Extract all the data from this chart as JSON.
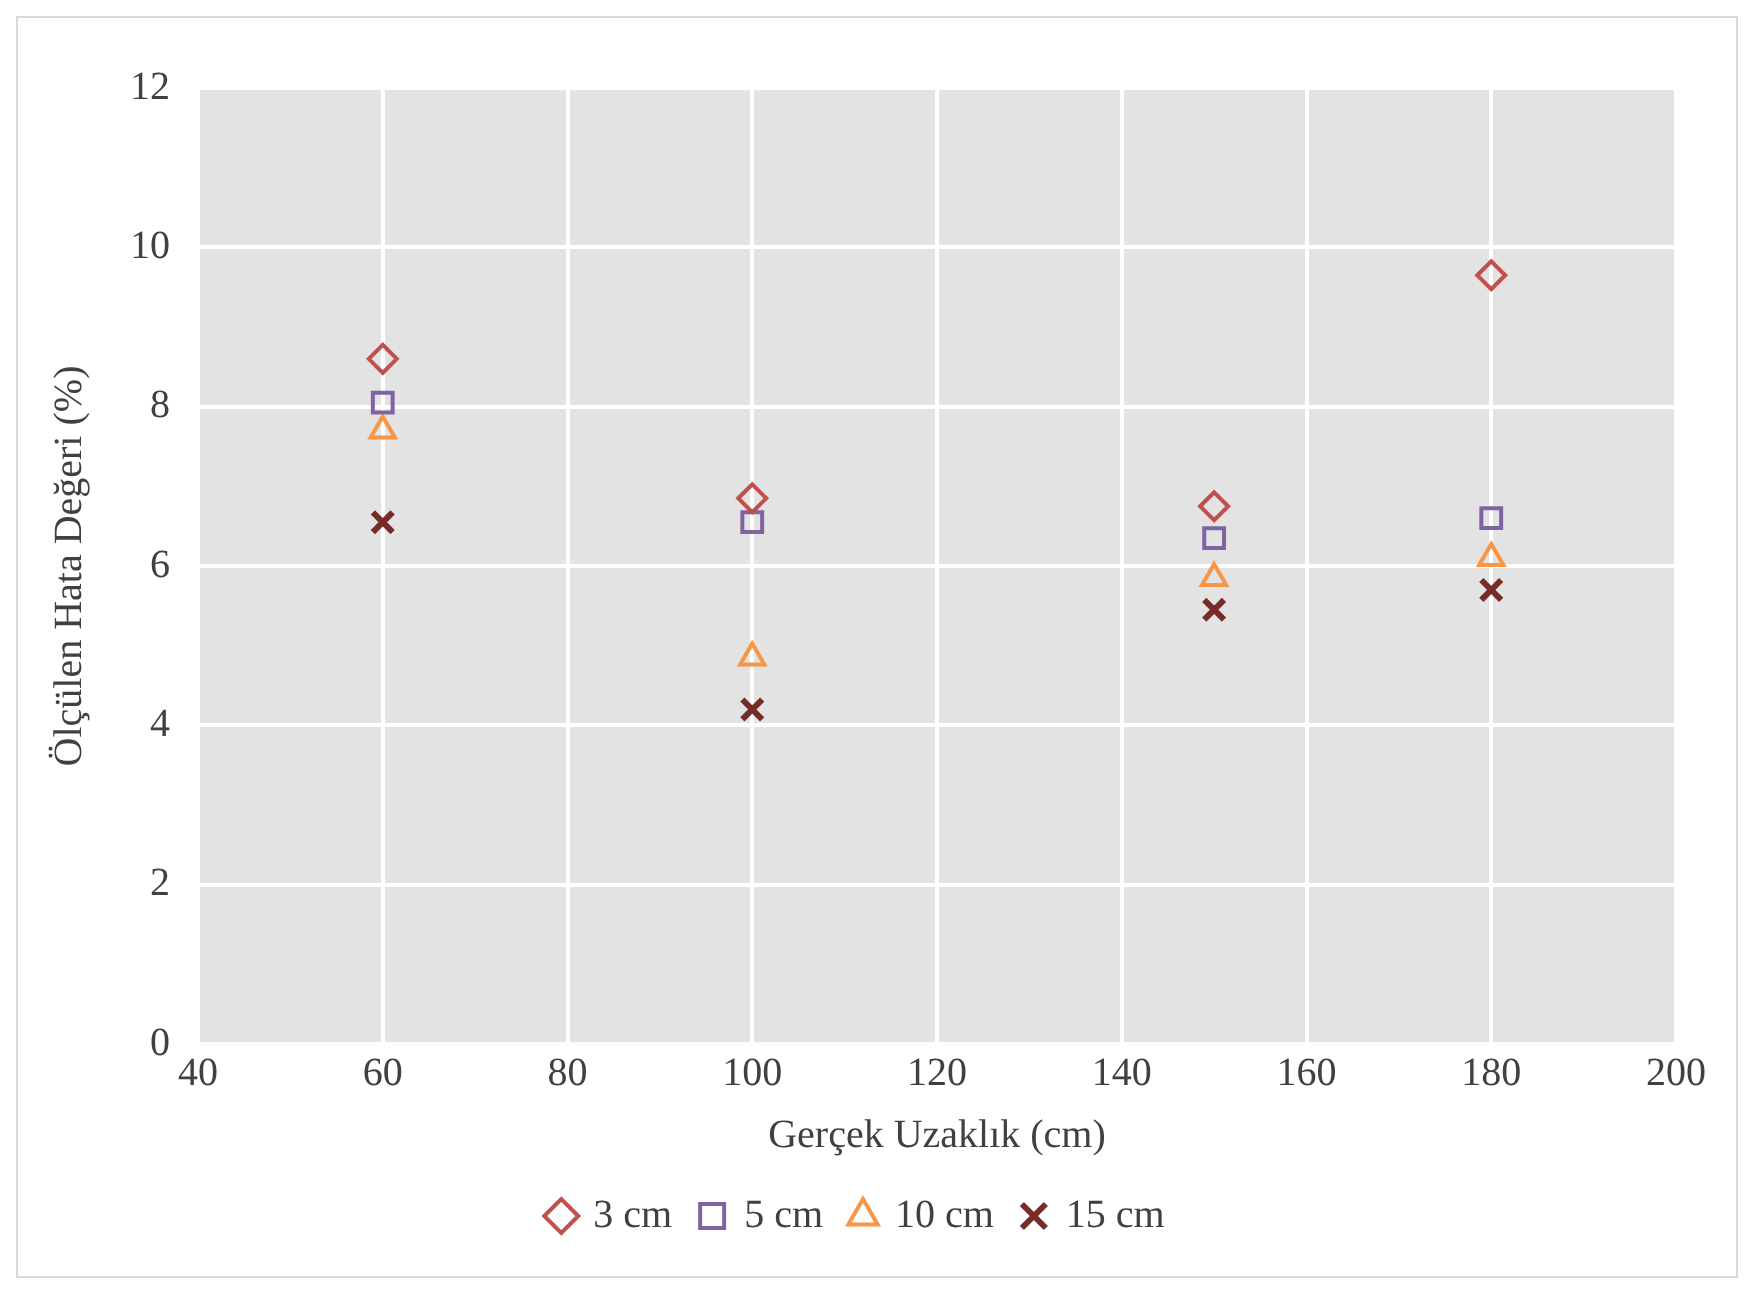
{
  "chart_data": {
    "type": "scatter",
    "xlabel": "Gerçek Uzaklık (cm)",
    "ylabel": "Ölçülen Hata Değeri (%)",
    "x": [
      60,
      100,
      150,
      180
    ],
    "series": [
      {
        "name": "3 cm",
        "color": "#c0504d",
        "marker": "diamond",
        "values": [
          8.6,
          6.85,
          6.75,
          9.65
        ]
      },
      {
        "name": "5 cm",
        "color": "#8064a2",
        "marker": "square",
        "values": [
          8.05,
          6.55,
          6.35,
          6.6
        ]
      },
      {
        "name": "10 cm",
        "color": "#f79646",
        "marker": "triangle",
        "values": [
          7.7,
          4.85,
          5.85,
          6.1
        ]
      },
      {
        "name": "15 cm",
        "color": "#772c2a",
        "marker": "cross",
        "values": [
          6.55,
          4.2,
          5.45,
          5.7
        ]
      }
    ],
    "xlim": [
      40,
      200
    ],
    "xticks": [
      40,
      60,
      80,
      100,
      120,
      140,
      160,
      180,
      200
    ],
    "ylim": [
      0,
      12
    ],
    "yticks": [
      0,
      2,
      4,
      6,
      8,
      10,
      12
    ],
    "grid": true,
    "legend": "bottom"
  }
}
